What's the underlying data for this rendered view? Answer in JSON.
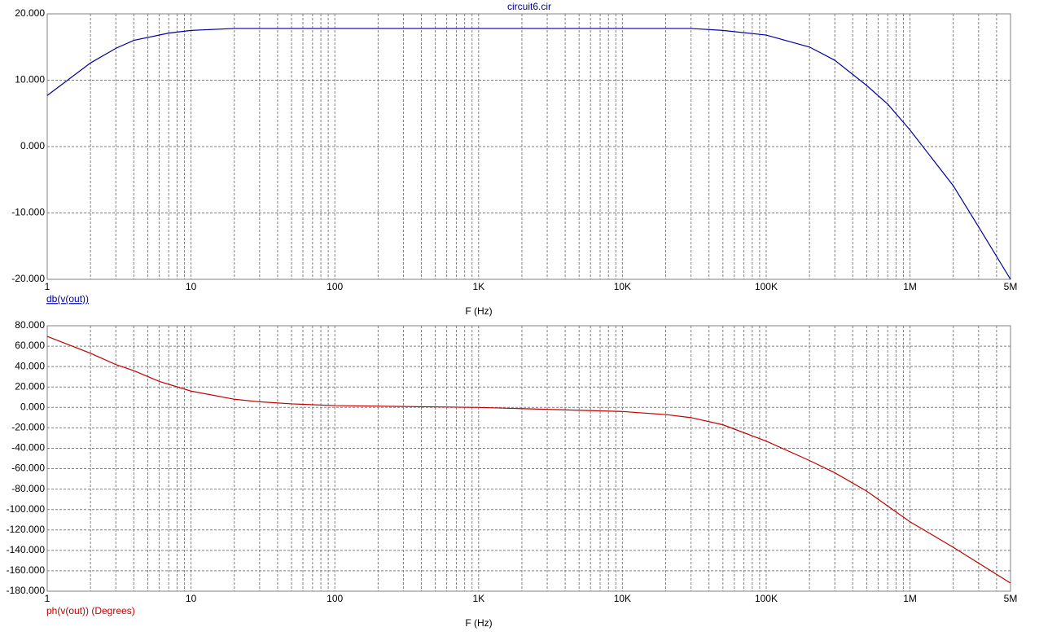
{
  "chart_data": [
    {
      "type": "line",
      "title": "circuit6.cir",
      "x_label": "F (Hz)",
      "x_log": true,
      "grid": true,
      "x": [
        1,
        2,
        3,
        4,
        7,
        10,
        20,
        100,
        1000,
        10000,
        30000,
        50000,
        100000,
        200000,
        300000,
        500000,
        700000,
        1000000,
        2000000,
        3000000,
        5000000
      ],
      "series": [
        {
          "name": "db(v(out))",
          "color": "#0000a0",
          "values": [
            7.7,
            12.6,
            14.8,
            16.0,
            17.1,
            17.5,
            17.8,
            17.8,
            17.8,
            17.8,
            17.8,
            17.5,
            16.8,
            15.0,
            13.0,
            9.2,
            6.4,
            2.5,
            -5.9,
            -12.1,
            -20.0
          ]
        }
      ],
      "xlim": [
        1,
        5000000
      ],
      "xticks": [
        1,
        10,
        100,
        {
          "value": 1000,
          "label": "1K"
        },
        {
          "value": 10000,
          "label": "10K"
        },
        {
          "value": 100000,
          "label": "100K"
        },
        {
          "value": 1000000,
          "label": "1M"
        },
        {
          "value": 5000000,
          "label": "5M"
        }
      ],
      "x_minor_ticks": [
        2,
        3,
        4,
        5,
        6,
        7,
        8,
        9,
        20,
        30,
        40,
        50,
        60,
        70,
        80,
        90,
        200,
        300,
        400,
        500,
        600,
        700,
        800,
        900,
        2000,
        3000,
        4000,
        5000,
        6000,
        7000,
        8000,
        9000,
        20000,
        30000,
        40000,
        50000,
        60000,
        70000,
        80000,
        90000,
        200000,
        300000,
        400000,
        500000,
        600000,
        700000,
        800000,
        900000,
        2000000,
        3000000,
        4000000
      ],
      "ylim": [
        -20,
        20
      ],
      "yticks": [
        {
          "value": -20,
          "label": "-20.000"
        },
        {
          "value": -10,
          "label": "-10.000"
        },
        {
          "value": 0,
          "label": "0.000"
        },
        {
          "value": 10,
          "label": "10.000"
        },
        {
          "value": 20,
          "label": "20.000"
        }
      ]
    },
    {
      "type": "line",
      "x_label": "F (Hz)",
      "x_log": true,
      "grid": true,
      "x": [
        1,
        2,
        3,
        4,
        6,
        10,
        20,
        30,
        50,
        100,
        1000,
        10000,
        20000,
        30000,
        50000,
        100000,
        200000,
        300000,
        500000,
        1000000,
        2000000,
        5000000
      ],
      "series": [
        {
          "name": "ph(v(out)) (Degrees)",
          "color": "#c00000",
          "values": [
            69.6,
            53,
            42,
            36,
            25.5,
            16,
            8,
            5.5,
            3.5,
            1.8,
            0,
            -4,
            -7,
            -10,
            -17,
            -33,
            -52,
            -64,
            -82,
            -112,
            -137,
            -172
          ]
        }
      ],
      "xlim": [
        1,
        5000000
      ],
      "xticks": [
        1,
        10,
        100,
        {
          "value": 1000,
          "label": "1K"
        },
        {
          "value": 10000,
          "label": "10K"
        },
        {
          "value": 100000,
          "label": "100K"
        },
        {
          "value": 1000000,
          "label": "1M"
        },
        {
          "value": 5000000,
          "label": "5M"
        }
      ],
      "x_minor_ticks": [
        2,
        3,
        4,
        5,
        6,
        7,
        8,
        9,
        20,
        30,
        40,
        50,
        60,
        70,
        80,
        90,
        200,
        300,
        400,
        500,
        600,
        700,
        800,
        900,
        2000,
        3000,
        4000,
        5000,
        6000,
        7000,
        8000,
        9000,
        20000,
        30000,
        40000,
        50000,
        60000,
        70000,
        80000,
        90000,
        200000,
        300000,
        400000,
        500000,
        600000,
        700000,
        800000,
        900000,
        2000000,
        3000000,
        4000000
      ],
      "ylim": [
        -180,
        80
      ],
      "yticks": [
        {
          "value": -180,
          "label": "-180.000"
        },
        {
          "value": -160,
          "label": "-160.000"
        },
        {
          "value": -140,
          "label": "-140.000"
        },
        {
          "value": -120,
          "label": "-120.000"
        },
        {
          "value": -100,
          "label": "-100.000"
        },
        {
          "value": -80,
          "label": "-80.000"
        },
        {
          "value": -60,
          "label": "-60.000"
        },
        {
          "value": -40,
          "label": "-40.000"
        },
        {
          "value": -20,
          "label": "-20.000"
        },
        {
          "value": 0,
          "label": "0.000"
        },
        {
          "value": 20,
          "label": "20.000"
        },
        {
          "value": 40,
          "label": "40.000"
        },
        {
          "value": 60,
          "label": "60.000"
        },
        {
          "value": 80,
          "label": "80.000"
        }
      ]
    }
  ]
}
